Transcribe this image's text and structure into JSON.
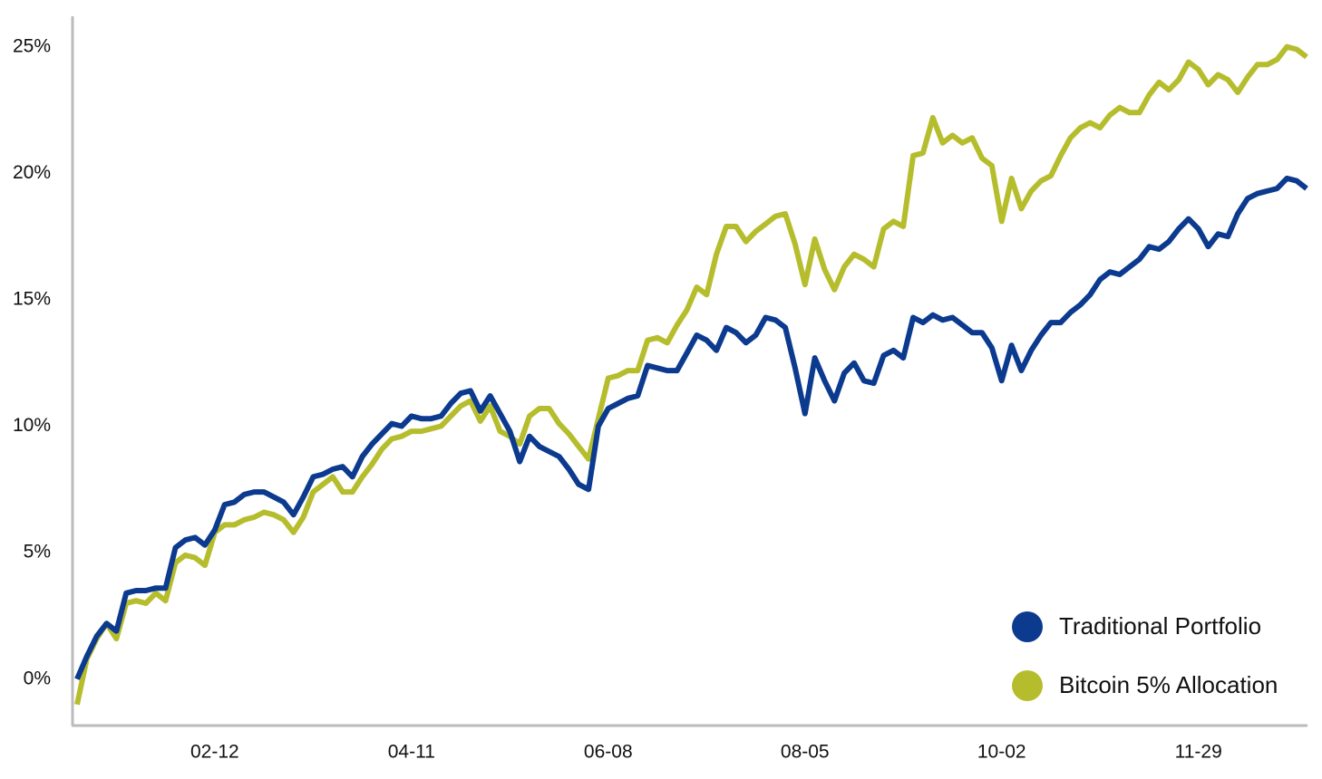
{
  "chart_data": {
    "type": "line",
    "categories": [
      null,
      null,
      null,
      null,
      null,
      null,
      null,
      null,
      null,
      null,
      null,
      null,
      null,
      null,
      "02-12",
      null,
      null,
      null,
      null,
      null,
      null,
      null,
      null,
      null,
      null,
      null,
      null,
      null,
      null,
      null,
      null,
      null,
      null,
      null,
      "04-11",
      null,
      null,
      null,
      null,
      null,
      null,
      null,
      null,
      null,
      null,
      null,
      null,
      null,
      null,
      null,
      null,
      null,
      null,
      null,
      "06-08",
      null,
      null,
      null,
      null,
      null,
      null,
      null,
      null,
      null,
      null,
      null,
      null,
      null,
      null,
      null,
      null,
      null,
      null,
      null,
      "08-05",
      null,
      null,
      null,
      null,
      null,
      null,
      null,
      null,
      null,
      null,
      null,
      null,
      null,
      null,
      null,
      null,
      null,
      null,
      null,
      "10-02",
      null,
      null,
      null,
      null,
      null,
      null,
      null,
      null,
      null,
      null,
      null,
      null,
      null,
      null,
      null,
      null,
      null,
      null,
      null,
      "11-29",
      null,
      null,
      null,
      null,
      null,
      null,
      null,
      null,
      null,
      null,
      null
    ],
    "series": [
      {
        "name": "Traditional Portfolio",
        "color": "#0b3a8e",
        "values": [
          0.0,
          0.9,
          1.7,
          2.2,
          1.9,
          3.4,
          3.5,
          3.5,
          3.6,
          3.6,
          5.2,
          5.5,
          5.6,
          5.3,
          5.9,
          6.9,
          7.0,
          7.3,
          7.4,
          7.4,
          7.2,
          7.0,
          6.5,
          7.2,
          8.0,
          8.1,
          8.3,
          8.4,
          8.0,
          8.8,
          9.3,
          9.7,
          10.1,
          10.0,
          10.4,
          10.3,
          10.3,
          10.4,
          10.9,
          11.3,
          11.4,
          10.6,
          11.2,
          10.5,
          9.8,
          8.6,
          9.6,
          9.2,
          9.0,
          8.8,
          8.3,
          7.7,
          7.5,
          10.0,
          10.7,
          10.9,
          11.1,
          11.2,
          12.4,
          12.3,
          12.2,
          12.2,
          12.9,
          13.6,
          13.4,
          13.0,
          13.9,
          13.7,
          13.3,
          13.6,
          14.3,
          14.2,
          13.9,
          12.3,
          10.5,
          12.7,
          11.8,
          11.0,
          12.1,
          12.5,
          11.8,
          11.7,
          12.8,
          13.0,
          12.7,
          14.3,
          14.1,
          14.4,
          14.2,
          14.3,
          14.0,
          13.7,
          13.7,
          13.1,
          11.8,
          13.2,
          12.2,
          13.0,
          13.6,
          14.1,
          14.1,
          14.5,
          14.8,
          15.2,
          15.8,
          16.1,
          16.0,
          16.3,
          16.6,
          17.1,
          17.0,
          17.3,
          17.8,
          18.2,
          17.8,
          17.1,
          17.6,
          17.5,
          18.4,
          19.0,
          19.2,
          19.3,
          19.4,
          19.8,
          19.7,
          19.4
        ]
      },
      {
        "name": "Bitcoin 5% Allocation",
        "color": "#b6bd2d",
        "values": [
          -1.0,
          0.8,
          1.6,
          2.2,
          1.6,
          3.0,
          3.1,
          3.0,
          3.4,
          3.1,
          4.6,
          4.9,
          4.8,
          4.5,
          5.8,
          6.1,
          6.1,
          6.3,
          6.4,
          6.6,
          6.5,
          6.3,
          5.8,
          6.4,
          7.4,
          7.7,
          8.0,
          7.4,
          7.4,
          8.0,
          8.5,
          9.1,
          9.5,
          9.6,
          9.8,
          9.8,
          9.9,
          10.0,
          10.4,
          10.8,
          11.0,
          10.2,
          10.8,
          9.8,
          9.6,
          9.3,
          10.4,
          10.7,
          10.7,
          10.1,
          9.7,
          9.2,
          8.7,
          10.3,
          11.9,
          12.0,
          12.2,
          12.2,
          13.4,
          13.5,
          13.3,
          14.0,
          14.6,
          15.5,
          15.2,
          16.8,
          17.9,
          17.9,
          17.3,
          17.7,
          18.0,
          18.3,
          18.4,
          17.2,
          15.6,
          17.4,
          16.2,
          15.4,
          16.3,
          16.8,
          16.6,
          16.3,
          17.8,
          18.1,
          17.9,
          20.7,
          20.8,
          22.2,
          21.2,
          21.5,
          21.2,
          21.4,
          20.6,
          20.3,
          18.1,
          19.8,
          18.6,
          19.3,
          19.7,
          19.9,
          20.7,
          21.4,
          21.8,
          22.0,
          21.8,
          22.3,
          22.6,
          22.4,
          22.4,
          23.1,
          23.6,
          23.3,
          23.7,
          24.4,
          24.1,
          23.5,
          23.9,
          23.7,
          23.2,
          23.8,
          24.3,
          24.3,
          24.5,
          25.0,
          24.9,
          24.6
        ]
      }
    ],
    "ylim": [
      -1.8,
      26.1
    ],
    "yticks": [
      {
        "value": 0,
        "label": "0%"
      },
      {
        "value": 5,
        "label": "5%"
      },
      {
        "value": 10,
        "label": "10%"
      },
      {
        "value": 15,
        "label": "15%"
      },
      {
        "value": 20,
        "label": "20%"
      },
      {
        "value": 25,
        "label": "25%"
      }
    ],
    "grid": false,
    "legend": "bottom-right"
  }
}
